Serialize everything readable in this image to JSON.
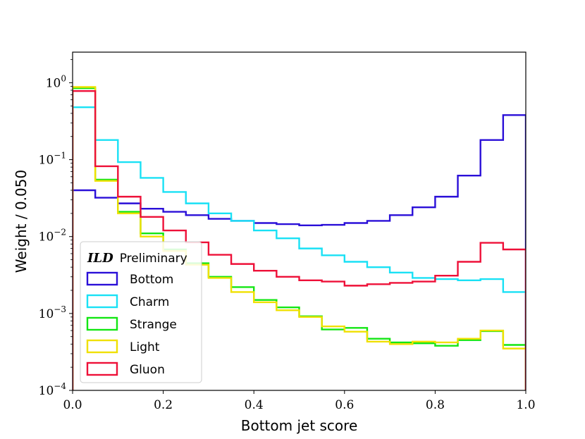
{
  "chart_data": {
    "type": "step",
    "title": "",
    "xlabel": "Bottom jet score",
    "ylabel": "Weight / 0.050",
    "xlim": [
      0.0,
      1.0
    ],
    "ylim": [
      0.0001,
      2.5
    ],
    "yscale": "log",
    "x_ticks": [
      0.0,
      0.2,
      0.4,
      0.6,
      0.8,
      1.0
    ],
    "x_tick_labels": [
      "0.0",
      "0.2",
      "0.4",
      "0.6",
      "0.8",
      "1.0"
    ],
    "y_ticks": [
      0.0001,
      0.001,
      0.01,
      0.1,
      1
    ],
    "y_tick_labels": [
      {
        "base": "10",
        "exp": "−4"
      },
      {
        "base": "10",
        "exp": "−3"
      },
      {
        "base": "10",
        "exp": "−2"
      },
      {
        "base": "10",
        "exp": "−1"
      },
      {
        "base": "10",
        "exp": "0"
      }
    ],
    "legend": {
      "title_bold": "ILD",
      "title": "Preliminary",
      "location": "lower-left"
    },
    "bin_edges": [
      0.0,
      0.05,
      0.1,
      0.15,
      0.2,
      0.25,
      0.3,
      0.35,
      0.4,
      0.45,
      0.5,
      0.55,
      0.6,
      0.65,
      0.7,
      0.75,
      0.8,
      0.85,
      0.9,
      0.95,
      1.0
    ],
    "series": [
      {
        "name": "Bottom",
        "color": "#2a0fd8",
        "values": [
          0.04,
          0.032,
          0.027,
          0.023,
          0.021,
          0.019,
          0.017,
          0.016,
          0.015,
          0.0145,
          0.014,
          0.0142,
          0.015,
          0.016,
          0.019,
          0.024,
          0.033,
          0.062,
          0.18,
          0.38
        ]
      },
      {
        "name": "Charm",
        "color": "#19e1f5",
        "values": [
          0.48,
          0.18,
          0.093,
          0.058,
          0.038,
          0.027,
          0.02,
          0.016,
          0.012,
          0.0095,
          0.007,
          0.0057,
          0.0047,
          0.004,
          0.0034,
          0.0029,
          0.0028,
          0.0027,
          0.0028,
          0.0019
        ]
      },
      {
        "name": "Strange",
        "color": "#13e613",
        "values": [
          0.85,
          0.055,
          0.021,
          0.011,
          0.0068,
          0.0045,
          0.003,
          0.0022,
          0.0015,
          0.0012,
          0.00092,
          0.00062,
          0.00065,
          0.00047,
          0.00042,
          0.00041,
          0.00038,
          0.00045,
          0.00059,
          0.00039
        ]
      },
      {
        "name": "Light",
        "color": "#f0e000",
        "values": [
          0.88,
          0.053,
          0.02,
          0.01,
          0.0065,
          0.0043,
          0.0029,
          0.0019,
          0.0014,
          0.0011,
          0.0009,
          0.00068,
          0.00058,
          0.00043,
          0.0004,
          0.00043,
          0.00042,
          0.00047,
          0.0006,
          0.00035
        ]
      },
      {
        "name": "Gluon",
        "color": "#ee1038",
        "values": [
          0.78,
          0.082,
          0.033,
          0.018,
          0.012,
          0.0084,
          0.0058,
          0.0044,
          0.0036,
          0.003,
          0.0027,
          0.0026,
          0.0023,
          0.0024,
          0.0025,
          0.0026,
          0.0031,
          0.0047,
          0.0083,
          0.0068
        ]
      }
    ]
  }
}
